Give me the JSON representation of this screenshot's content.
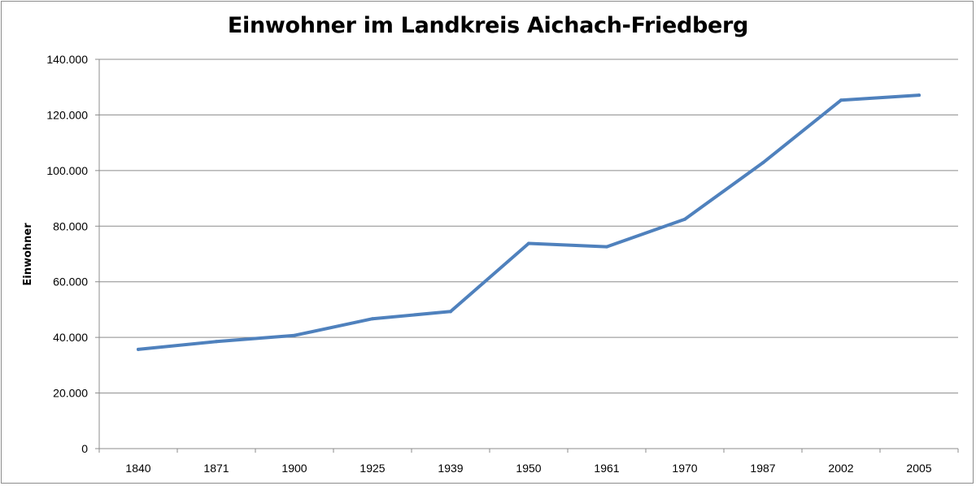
{
  "chart_data": {
    "type": "line",
    "title": "Einwohner im Landkreis Aichach-Friedberg",
    "xlabel": "",
    "ylabel": "Einwohner",
    "categories": [
      "1840",
      "1871",
      "1900",
      "1925",
      "1939",
      "1950",
      "1961",
      "1970",
      "1987",
      "2002",
      "2005"
    ],
    "series": [
      {
        "values": [
          35700,
          38500,
          40700,
          46700,
          49300,
          73800,
          72600,
          82500,
          102800,
          125300,
          127100
        ],
        "color": "#4f81bd"
      }
    ],
    "ylim": [
      0,
      140000
    ],
    "yticks": [
      0,
      20000,
      40000,
      60000,
      80000,
      100000,
      120000,
      140000
    ],
    "ytick_labels": [
      "0",
      "20.000",
      "40.000",
      "60.000",
      "80.000",
      "100.000",
      "120.000",
      "140.000"
    ],
    "grid": true,
    "legend": "none",
    "gridline_color": "#8c8c8c"
  }
}
